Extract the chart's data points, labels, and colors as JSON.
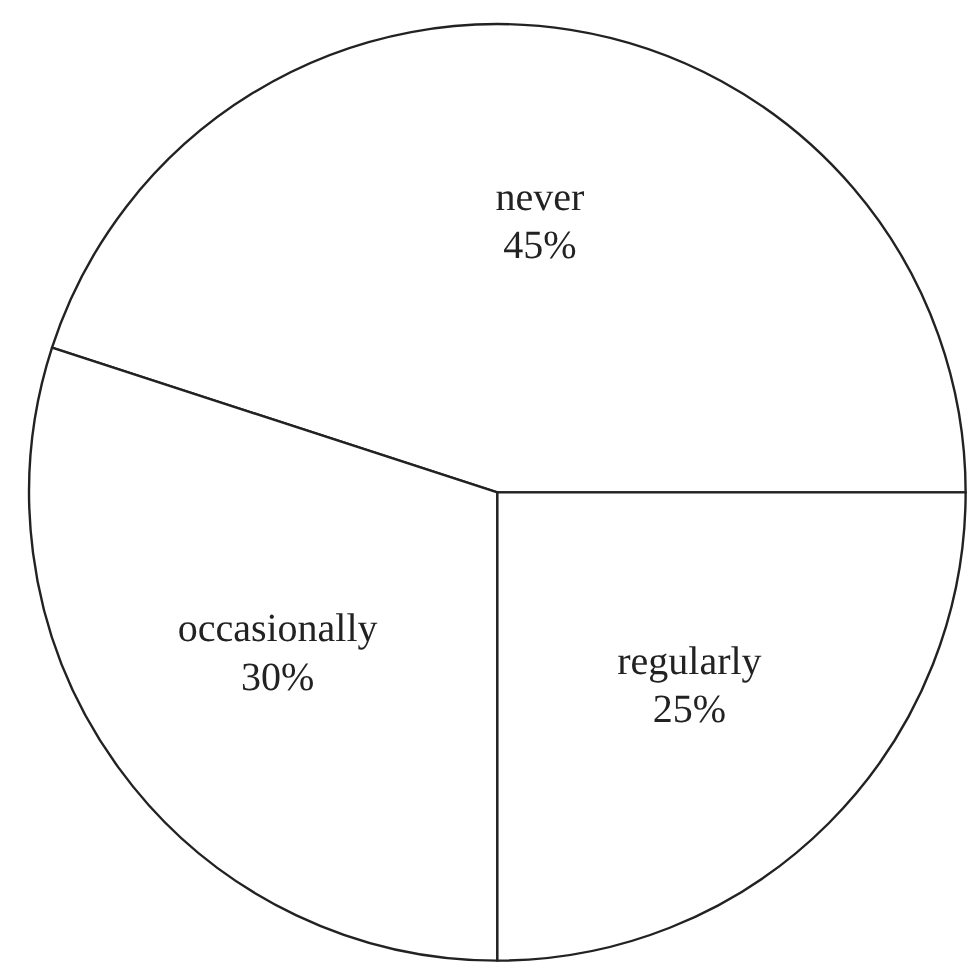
{
  "chart_data": {
    "type": "pie",
    "categories": [
      "never",
      "occasionally",
      "regularly"
    ],
    "values": [
      45,
      30,
      25
    ],
    "colors": [
      "#ffffff",
      "#ffffff",
      "#ffffff"
    ],
    "value_labels": [
      "45%",
      "30%",
      "25%"
    ]
  }
}
